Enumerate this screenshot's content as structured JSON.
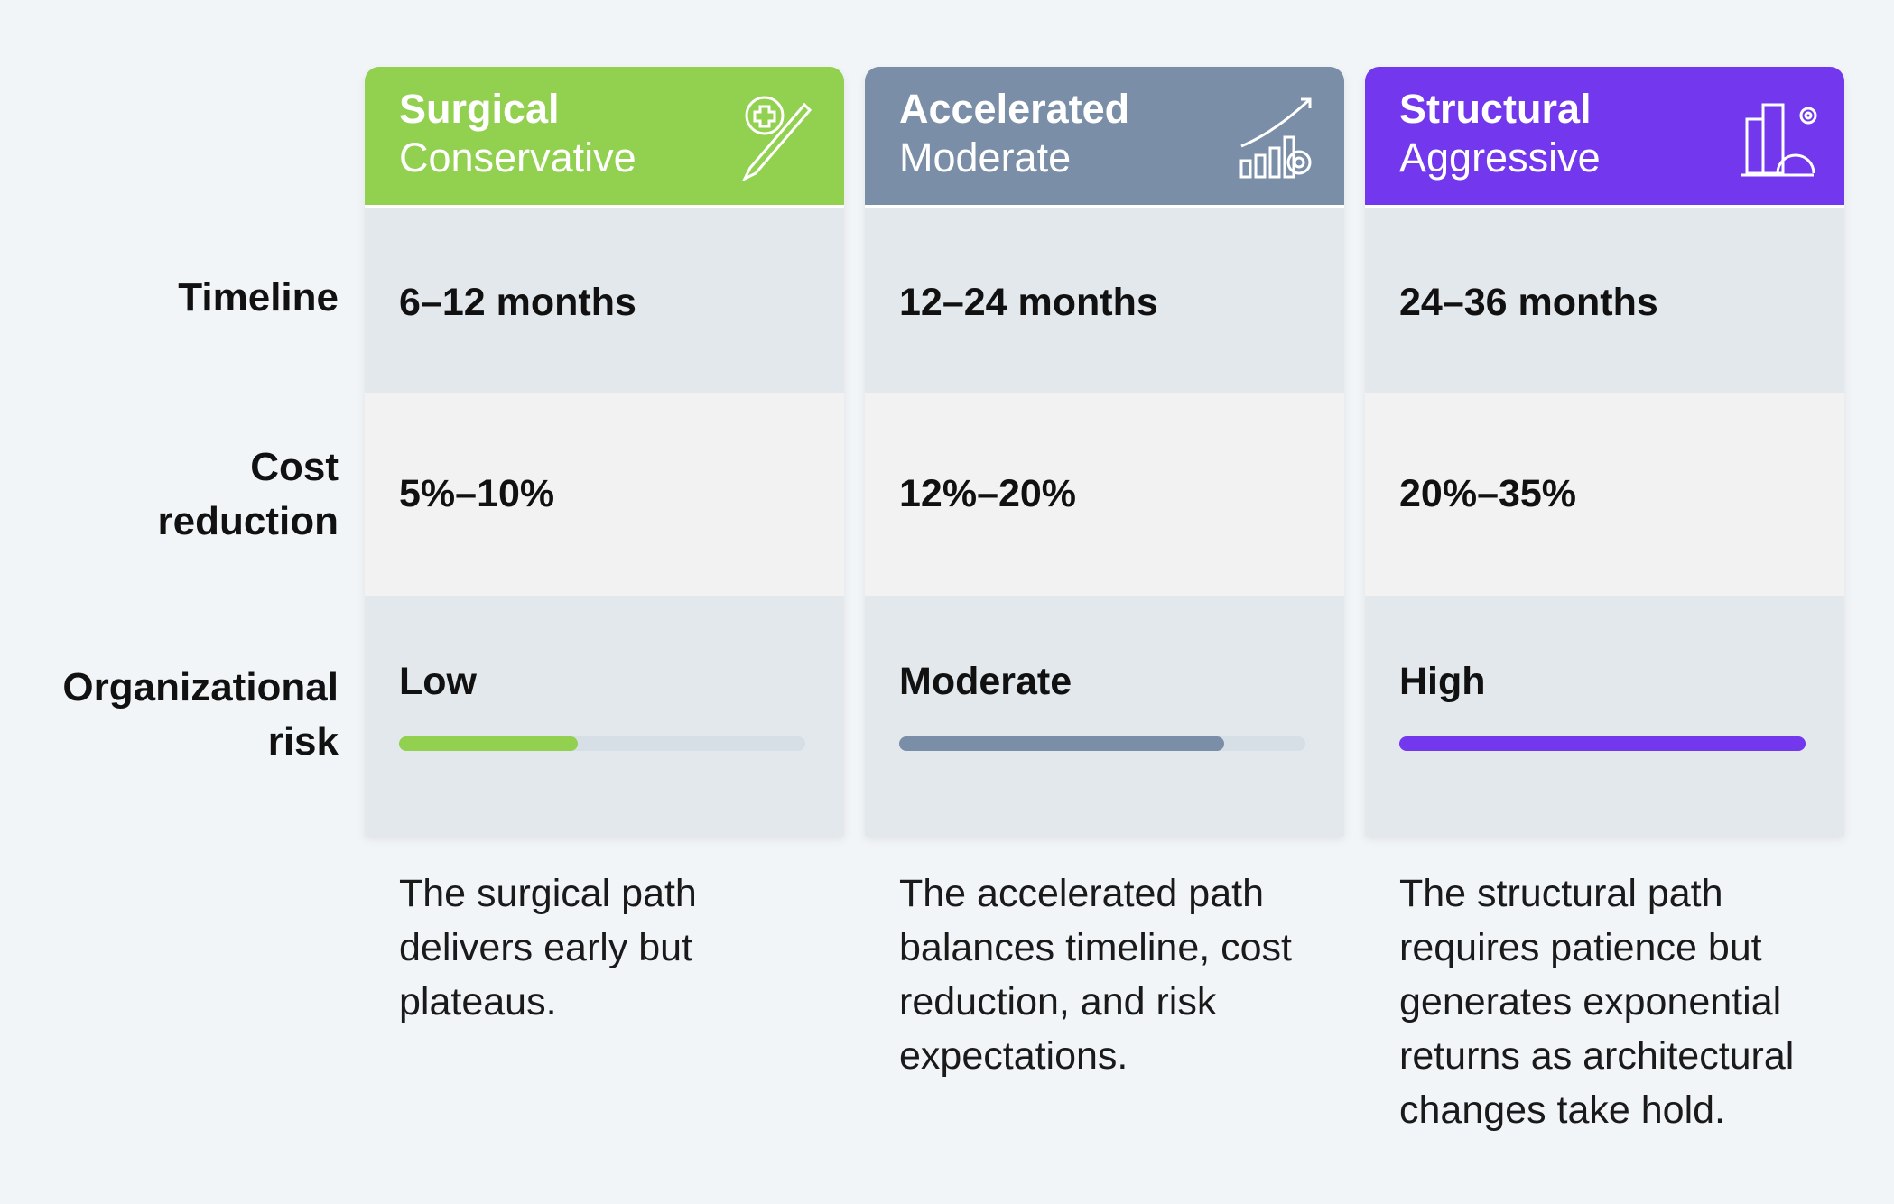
{
  "row_labels": {
    "timeline": "Timeline",
    "cost_reduction": "Cost reduction",
    "risk": "Organizational risk"
  },
  "columns": [
    {
      "title": "Surgical",
      "subtitle": "Conservative",
      "timeline": "6–12 months",
      "cost_reduction": "5%–10%",
      "risk": "Low",
      "description": "The surgical path delivers early but plateaus."
    },
    {
      "title": "Accelerated",
      "subtitle": "Moderate",
      "timeline": "12–24 months",
      "cost_reduction": "12%–20%",
      "risk": "Moderate",
      "description": "The accelerated path balances timeline, cost reduction, and risk expectations."
    },
    {
      "title": "Structural",
      "subtitle": "Aggressive",
      "timeline": "24–36 months",
      "cost_reduction": "20%–35%",
      "risk": "High",
      "description": "The structural path requires patience but generates exponential returns as architectural changes take hold."
    }
  ]
}
